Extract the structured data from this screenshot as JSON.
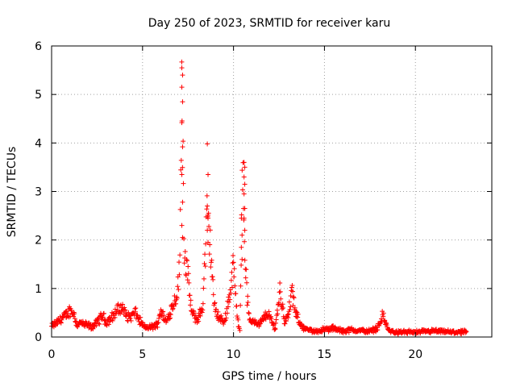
{
  "chart_data": {
    "type": "scatter",
    "title": "Day 250 of 2023, SRMTID for receiver karu",
    "xlabel": "GPS time / hours",
    "ylabel": "SRMTID / TECUs",
    "xlim": [
      0,
      24.2
    ],
    "ylim": [
      0,
      6
    ],
    "x_ticks": [
      0,
      5,
      10,
      15,
      20
    ],
    "x_tick_labels": [
      "0",
      "5",
      "10",
      "15",
      "20"
    ],
    "y_ticks": [
      0,
      1,
      2,
      3,
      4,
      5,
      6
    ],
    "y_tick_labels": [
      "0",
      "1",
      "2",
      "3",
      "4",
      "5",
      "6"
    ],
    "grid": true,
    "marker": "plus",
    "color": "#ff0000",
    "series": [
      {
        "name": "karu",
        "profile_hours": [
          0.0,
          0.3,
          0.6,
          0.8,
          1.0,
          1.2,
          1.4,
          1.6,
          1.8,
          2.0,
          2.2,
          2.5,
          2.8,
          3.0,
          3.3,
          3.6,
          3.9,
          4.1,
          4.3,
          4.6,
          4.9,
          5.1,
          5.4,
          5.8,
          6.0,
          6.3,
          6.6,
          6.9,
          7.05,
          7.15,
          7.3,
          7.5,
          7.7,
          8.0,
          8.3,
          8.55,
          8.75,
          8.95,
          9.2,
          9.5,
          9.8,
          10.0,
          10.2,
          10.35,
          10.5,
          10.6,
          10.75,
          10.9,
          11.1,
          11.4,
          11.7,
          11.9,
          12.1,
          12.3,
          12.55,
          12.8,
          13.0,
          13.2,
          13.4,
          13.7,
          14.0,
          14.5,
          15.0,
          15.5,
          16.0,
          16.5,
          17.0,
          17.5,
          17.9,
          18.2,
          18.5,
          18.8,
          19.2,
          20.0,
          21.0,
          22.0,
          22.8
        ],
        "profile_srmtid": [
          0.22,
          0.3,
          0.4,
          0.45,
          0.55,
          0.5,
          0.25,
          0.3,
          0.25,
          0.25,
          0.2,
          0.3,
          0.45,
          0.3,
          0.4,
          0.55,
          0.6,
          0.45,
          0.4,
          0.5,
          0.3,
          0.2,
          0.2,
          0.25,
          0.55,
          0.3,
          0.6,
          0.9,
          1.5,
          5.5,
          1.8,
          1.2,
          0.5,
          0.35,
          0.6,
          2.5,
          1.8,
          0.6,
          0.4,
          0.3,
          0.9,
          1.5,
          0.4,
          0.15,
          3.5,
          2.0,
          0.8,
          0.3,
          0.35,
          0.25,
          0.4,
          0.5,
          0.3,
          0.2,
          0.95,
          0.35,
          0.4,
          0.95,
          0.5,
          0.25,
          0.15,
          0.12,
          0.15,
          0.18,
          0.12,
          0.15,
          0.13,
          0.12,
          0.18,
          0.45,
          0.15,
          0.1,
          0.1,
          0.1,
          0.12,
          0.1,
          0.1
        ],
        "spikes": [
          {
            "hour": 7.18,
            "srmtid": [
              5.55,
              5.4,
              5.15,
              4.85,
              4.42,
              3.92,
              3.35,
              2.78,
              2.3,
              2.05
            ]
          },
          {
            "hour": 8.58,
            "srmtid": [
              3.98,
              3.35,
              2.7,
              2.45,
              2.2,
              1.95
            ]
          },
          {
            "hour": 10.6,
            "srmtid": [
              3.6,
              3.5,
              3.3,
              3.15,
              2.95,
              2.65,
              2.45,
              2.2
            ]
          },
          {
            "hour": 10.45,
            "srmtid": [
              2.45,
              2.1,
              1.85,
              1.6
            ]
          }
        ]
      }
    ]
  }
}
